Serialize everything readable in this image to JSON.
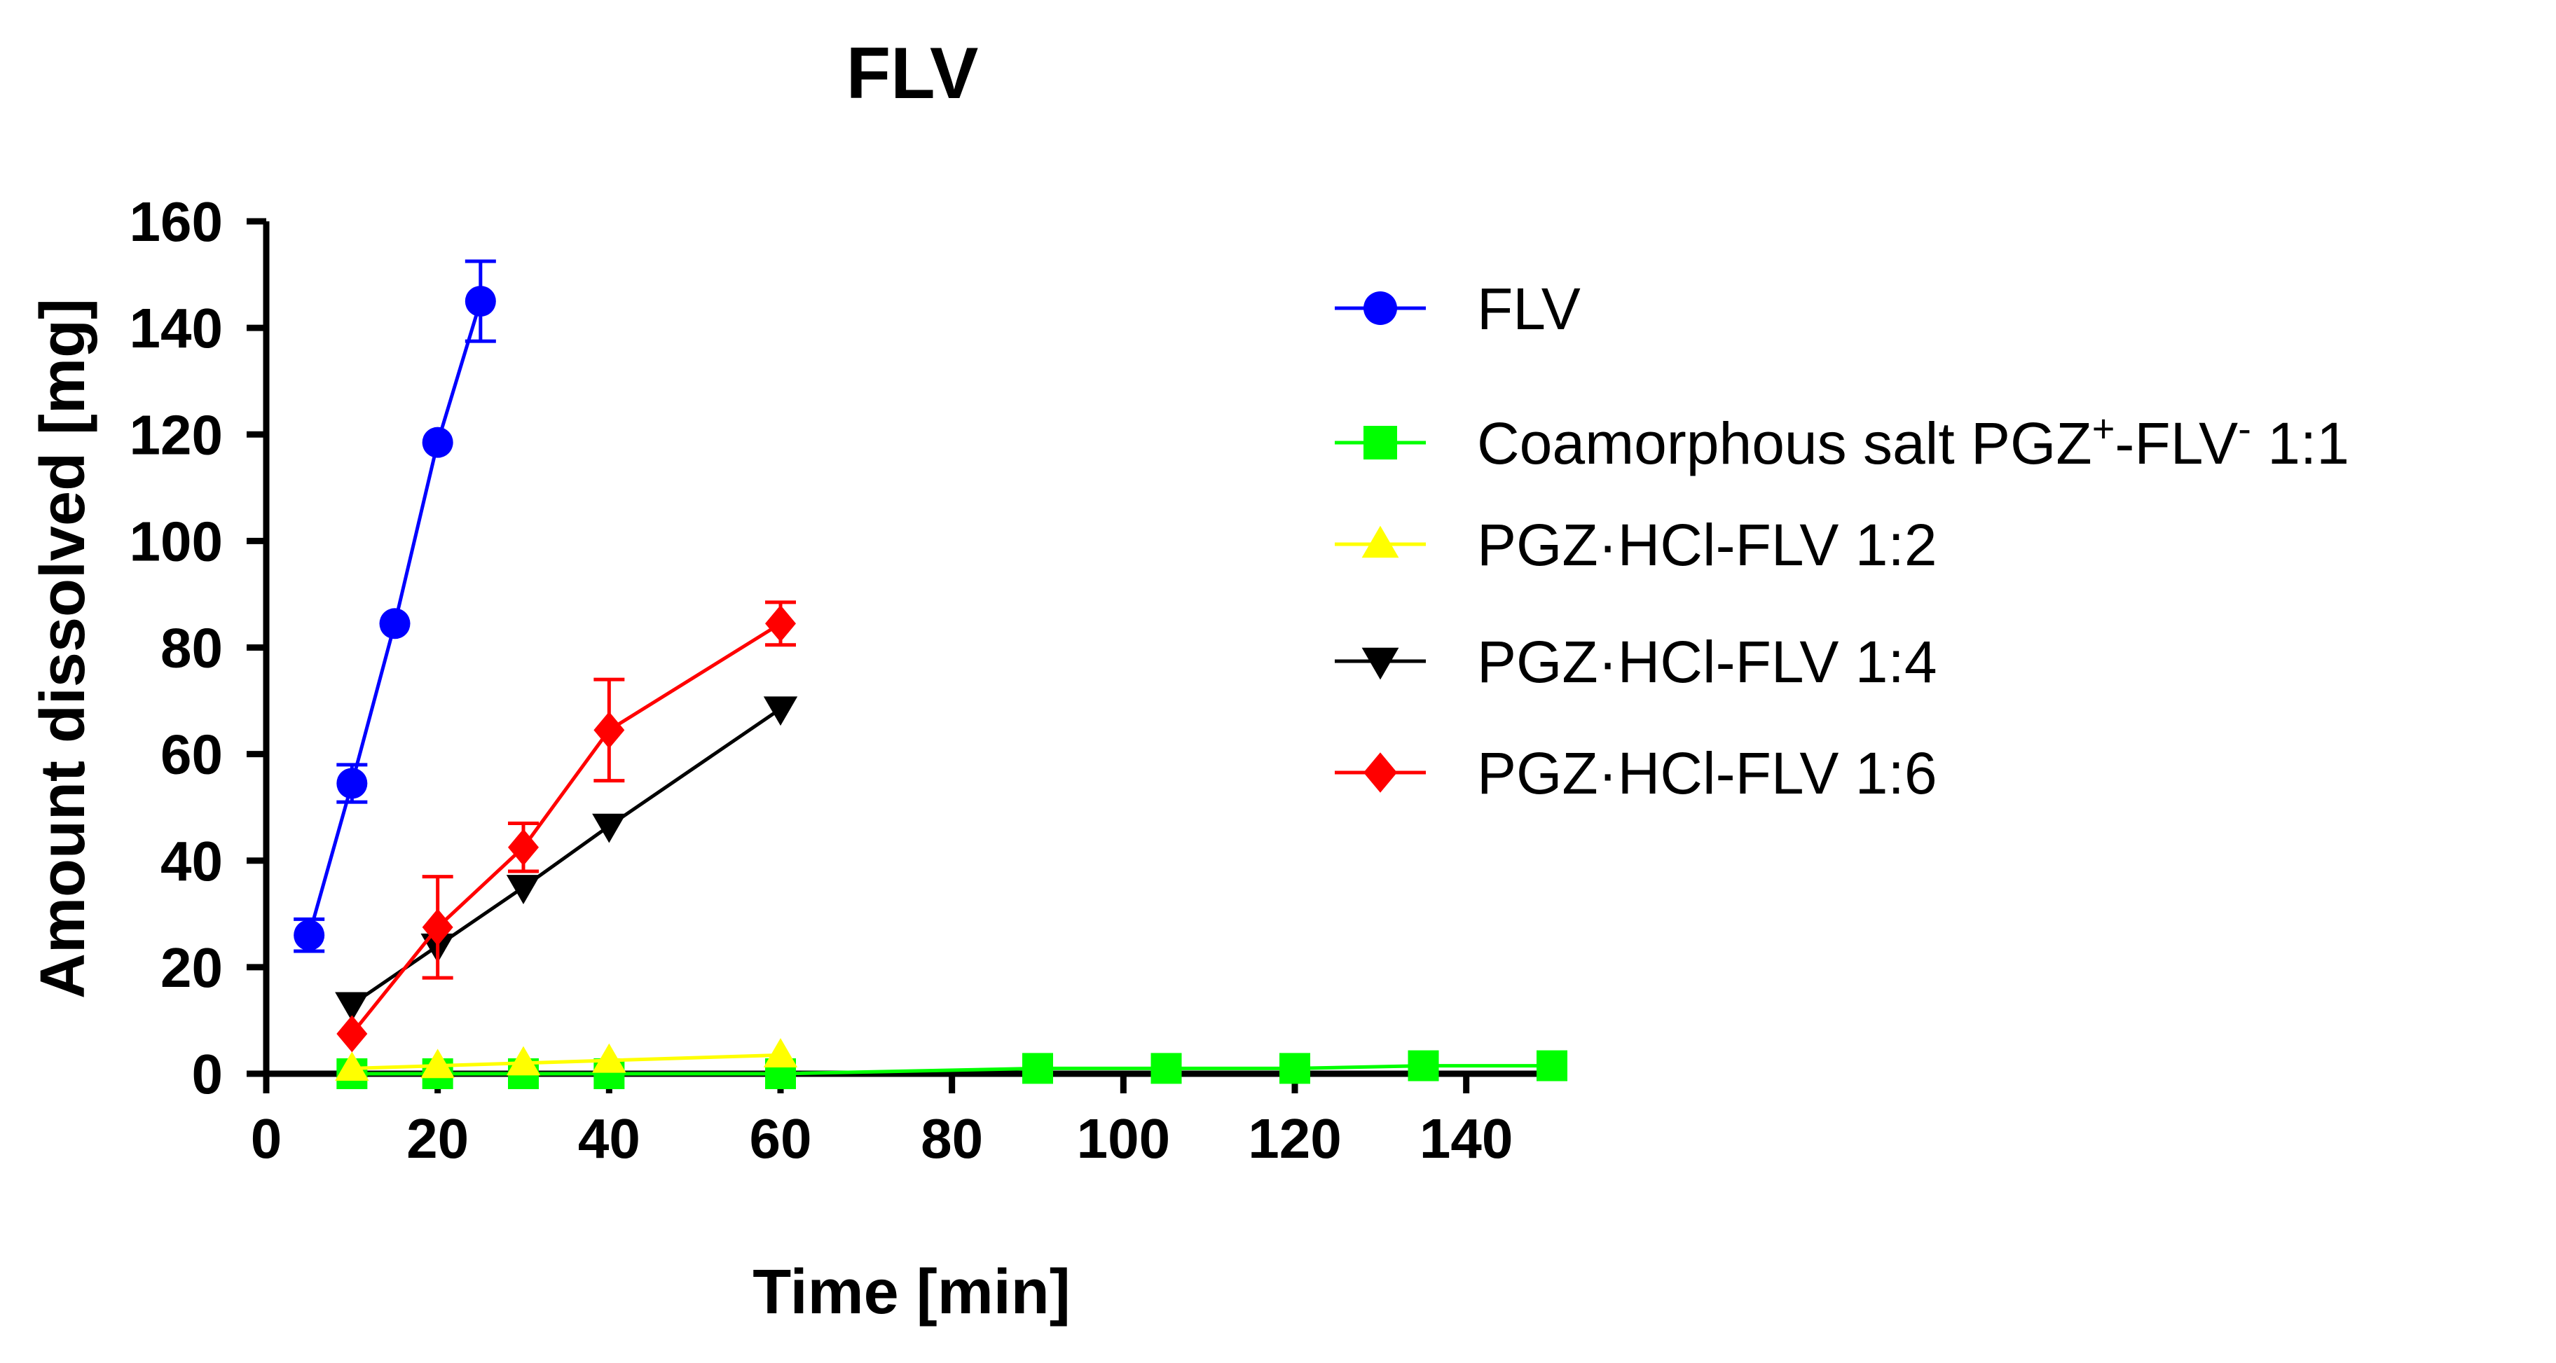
{
  "chart_data": {
    "type": "line",
    "title": "FLV",
    "xlabel": "Time [min]",
    "ylabel": "Amount dissolved [mg]",
    "xlim": [
      0,
      150
    ],
    "ylim": [
      0,
      160
    ],
    "xticks": [
      0,
      20,
      40,
      60,
      80,
      100,
      120,
      140
    ],
    "yticks": [
      0,
      20,
      40,
      60,
      80,
      100,
      120,
      140,
      160
    ],
    "grid": false,
    "legend_position": "right",
    "series": [
      {
        "name": "FLV",
        "color": "#0000ff",
        "marker": "circle",
        "x": [
          5,
          10,
          15,
          20,
          25
        ],
        "y": [
          26,
          54.5,
          84.5,
          118.5,
          145
        ],
        "err": [
          3,
          3.5,
          0,
          0,
          7.5
        ]
      },
      {
        "name": "Coamorphous salt PGZ+-FLV- 1:1",
        "label_parts": {
          "a": "Coamorphous salt PGZ",
          "sup1": "+",
          "b": "-FLV",
          "sup2": "-",
          "c": " 1:1"
        },
        "color": "#00ff00",
        "marker": "square",
        "x": [
          10,
          20,
          30,
          40,
          60,
          90,
          105,
          120,
          135,
          150
        ],
        "y": [
          0,
          0,
          0,
          0,
          0,
          1,
          1,
          1,
          1.5,
          1.5
        ],
        "err": [
          0,
          0,
          0,
          0,
          0,
          0,
          0,
          0,
          0,
          0
        ]
      },
      {
        "name": "PGZ·HCl-FLV 1:2",
        "color": "#ffff00",
        "marker": "triangle-up",
        "x": [
          10,
          20,
          30,
          40,
          60
        ],
        "y": [
          1,
          1.5,
          2,
          2.5,
          3.5
        ],
        "err": [
          0,
          0,
          0,
          0,
          0
        ]
      },
      {
        "name": "PGZ·HCl-FLV 1:4",
        "color": "#000000",
        "marker": "triangle-down",
        "x": [
          10,
          20,
          30,
          40,
          60
        ],
        "y": [
          13,
          24,
          35,
          46.5,
          68.5
        ],
        "err": [
          0,
          0,
          0,
          0,
          0
        ]
      },
      {
        "name": "PGZ·HCl-FLV 1:6",
        "color": "#ff0000",
        "marker": "diamond",
        "x": [
          10,
          20,
          30,
          40,
          60
        ],
        "y": [
          7.5,
          27.5,
          42.5,
          64.5,
          84.5
        ],
        "err": [
          0,
          9.5,
          4.5,
          9.5,
          4
        ]
      }
    ]
  }
}
